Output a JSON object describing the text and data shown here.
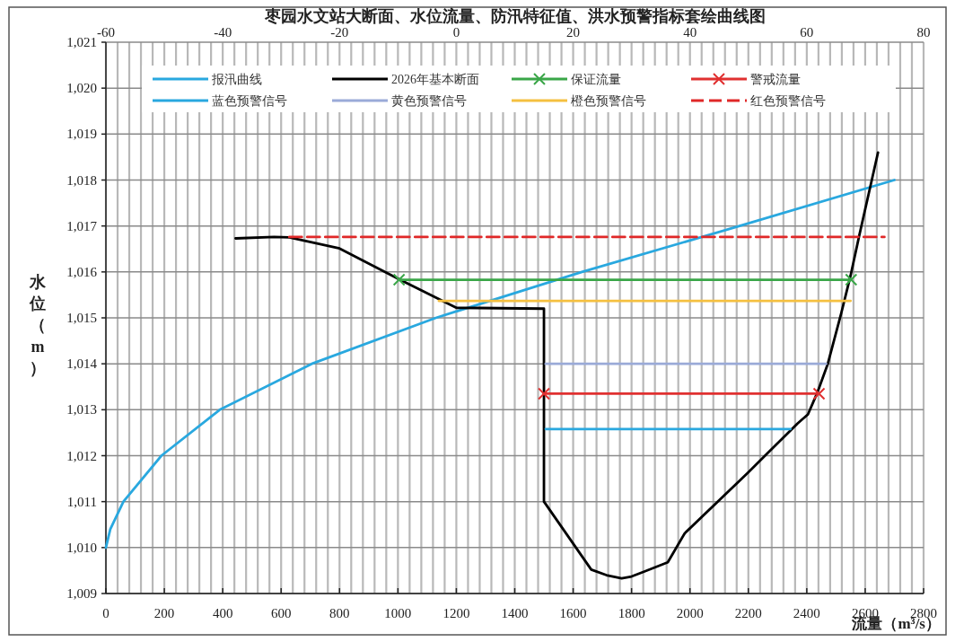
{
  "chart_data": {
    "type": "line",
    "title": "枣园水文站大断面、水位流量、防汛特征值、洪水预警指标套绘曲线图",
    "xlabel": "流量（m³/s）",
    "ylabel": "水位（m）",
    "xlim": [
      0,
      2800
    ],
    "xticks": [
      0,
      200,
      400,
      600,
      800,
      1000,
      1200,
      1400,
      1600,
      1800,
      2000,
      2200,
      2400,
      2600,
      2800
    ],
    "x2lim": [
      -60,
      80
    ],
    "x2ticks": [
      -60,
      -40,
      -20,
      0,
      20,
      40,
      60,
      80
    ],
    "ylim": [
      1009,
      1021
    ],
    "yticks": [
      {
        "value": 1009,
        "label": "1,009"
      },
      {
        "value": 1010,
        "label": "1,010"
      },
      {
        "value": 1011,
        "label": "1,011"
      },
      {
        "value": 1012,
        "label": "1,012"
      },
      {
        "value": 1013,
        "label": "1,013"
      },
      {
        "value": 1014,
        "label": "1,014"
      },
      {
        "value": 1015,
        "label": "1,015"
      },
      {
        "value": 1016,
        "label": "1,016"
      },
      {
        "value": 1017,
        "label": "1,017"
      },
      {
        "value": 1018,
        "label": "1,018"
      },
      {
        "value": 1019,
        "label": "1,019"
      },
      {
        "value": 1020,
        "label": "1,020"
      },
      {
        "value": 1021,
        "label": "1,021"
      }
    ],
    "grid": true,
    "legend": "top",
    "series": [
      {
        "name": "报汛曲线",
        "color": "#29a8df",
        "x": [
          0,
          15,
          60,
          190,
          390,
          705,
          1130,
          1630,
          2170,
          2700
        ],
        "values": [
          1010,
          1010.4,
          1011,
          1012,
          1013,
          1014,
          1015,
          1016,
          1017,
          1018
        ]
      },
      {
        "name": "2026年基本断面",
        "color": "#000000",
        "axis": "x2",
        "x": [
          -37.8,
          -31.2,
          -28.6,
          -20,
          -9.8,
          0,
          15,
          15,
          23.1,
          25.7,
          28.3,
          30,
          32.2,
          36.2,
          39.1,
          50,
          58.4,
          60.2,
          61.8,
          63.6,
          65.9,
          67.5,
          69,
          72.2
        ],
        "values": [
          1016.73,
          1016.76,
          1016.75,
          1016.51,
          1015.84,
          1015.22,
          1015.2,
          1011,
          1009.52,
          1009.4,
          1009.33,
          1009.37,
          1009.48,
          1009.68,
          1010.31,
          1011.64,
          1012.7,
          1012.9,
          1013.37,
          1014,
          1015.1,
          1015.92,
          1016.8,
          1018.6
        ]
      },
      {
        "name": "保证流量",
        "color": "#3aa648",
        "axis": "x2",
        "marker": "cross",
        "x": [
          -9.8,
          67.6
        ],
        "values": [
          1015.83,
          1015.83
        ]
      },
      {
        "name": "警戒流量",
        "color": "#e03030",
        "axis": "x2",
        "marker": "cross",
        "x": [
          15,
          62.1
        ],
        "values": [
          1013.35,
          1013.35
        ]
      },
      {
        "name": "蓝色预警信号",
        "color": "#29a8df",
        "axis": "x2",
        "x": [
          15.3,
          57.2
        ],
        "values": [
          1012.58,
          1012.58
        ]
      },
      {
        "name": "黄色预警信号",
        "color": "#9aaad8",
        "axis": "x2",
        "x": [
          15.3,
          63.3
        ],
        "values": [
          1014,
          1014
        ]
      },
      {
        "name": "橙色预警信号",
        "color": "#f5c040",
        "axis": "x2",
        "x": [
          -3,
          67.5
        ],
        "values": [
          1015.37,
          1015.37
        ]
      },
      {
        "name": "红色预警信号",
        "color": "#e02828",
        "axis": "x2",
        "line_style": "dashed",
        "x": [
          -28.6,
          73.3
        ],
        "values": [
          1016.76,
          1016.76
        ]
      }
    ]
  }
}
